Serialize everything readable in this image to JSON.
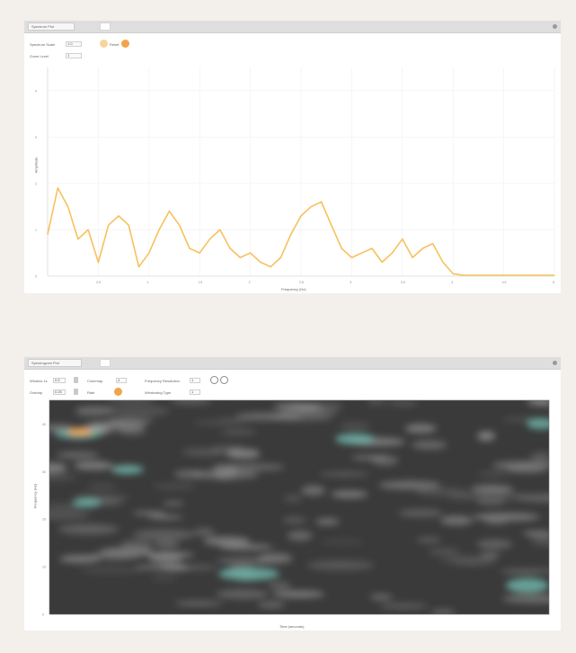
{
  "spectrum_panel": {
    "title": "Spectrum Plot",
    "control1_label": "Spectrum Scale",
    "control1_value": "1.0",
    "control2_label": "Zoom Level",
    "control2_value": "1",
    "reset_label": "Reset",
    "xlabel": "Frequency (Hz)",
    "ylabel": "Amplitude",
    "ytick_labels": [
      "4",
      "3",
      "2",
      "1",
      "0"
    ],
    "xtick_labels": [
      "0.5",
      "1",
      "1.5",
      "2",
      "2.5",
      "3",
      "3.5",
      "4",
      "4.5",
      "5"
    ],
    "line_color": "#f6c15c"
  },
  "spectrogram_panel": {
    "title": "Spectrogram Plot",
    "ctrl_a_label": "Window 1s",
    "ctrl_a_value": "0.5",
    "ctrl_b_label": "Overlap",
    "ctrl_b_value": "0.25",
    "ctrl_c_label": "Colormap",
    "ctrl_c_value": "4",
    "ctrl_d_label": "Rate",
    "ctrl_e_label": "Frequency Resolution",
    "ctrl_e_value": "1",
    "ctrl_f_label": "Windowing Type",
    "ctrl_f_value": "1",
    "xlabel": "Time (seconds)",
    "ylabel": "Frequency (Hz)",
    "ytick_labels": [
      "40",
      "30",
      "20",
      "10",
      "0"
    ],
    "accent_orange": "#f2a44b",
    "accent_teal": "#6fb3a8"
  },
  "chart_data": {
    "type": "line",
    "x": [
      0.0,
      0.1,
      0.2,
      0.3,
      0.4,
      0.5,
      0.6,
      0.7,
      0.8,
      0.9,
      1.0,
      1.1,
      1.2,
      1.3,
      1.4,
      1.5,
      1.6,
      1.7,
      1.8,
      1.9,
      2.0,
      2.1,
      2.2,
      2.3,
      2.4,
      2.5,
      2.6,
      2.7,
      2.8,
      2.9,
      3.0,
      3.1,
      3.2,
      3.3,
      3.4,
      3.5,
      3.6,
      3.7,
      3.8,
      3.9,
      4.0,
      4.1,
      4.2,
      4.3,
      4.4,
      4.5,
      4.6,
      4.7,
      4.8,
      4.9,
      5.0
    ],
    "y": [
      0.9,
      1.9,
      1.5,
      0.8,
      1.0,
      0.3,
      1.1,
      1.3,
      1.1,
      0.2,
      0.5,
      1.0,
      1.4,
      1.1,
      0.6,
      0.5,
      0.8,
      1.0,
      0.6,
      0.4,
      0.5,
      0.3,
      0.2,
      0.4,
      0.9,
      1.3,
      1.5,
      1.6,
      1.1,
      0.6,
      0.4,
      0.5,
      0.6,
      0.3,
      0.5,
      0.8,
      0.4,
      0.6,
      0.7,
      0.3,
      0.05,
      0.02,
      0.02,
      0.02,
      0.02,
      0.02,
      0.02,
      0.02,
      0.02,
      0.02,
      0.02
    ],
    "xlabel": "Frequency (Hz)",
    "ylabel": "Amplitude",
    "ylim": [
      0,
      4.5
    ],
    "xlim": [
      0,
      5
    ]
  }
}
